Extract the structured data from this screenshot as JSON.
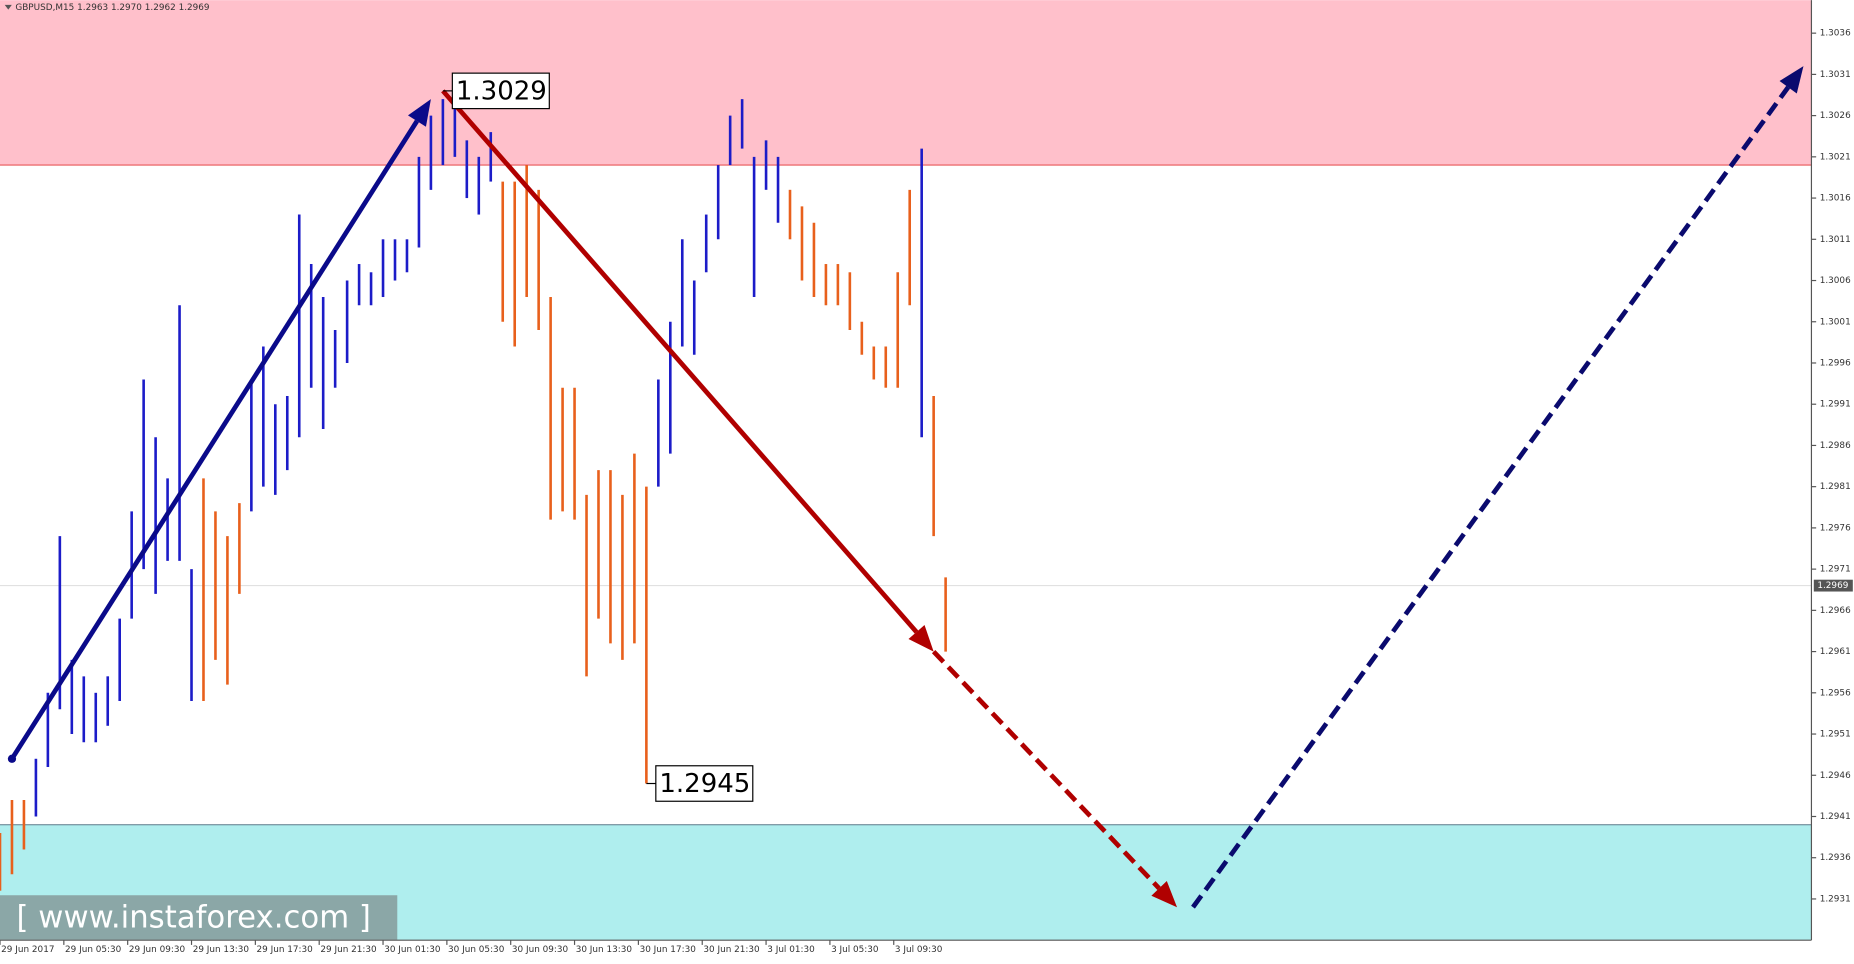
{
  "chart_data": {
    "type": "ohlc",
    "title": "GBPUSD,M15  1.2963 1.2970 1.2962 1.2969",
    "watermark": "[  www.instaforex.com ]",
    "x": [
      0,
      3,
      6,
      9,
      12,
      15,
      18,
      21,
      24,
      27,
      30,
      33,
      36,
      39,
      42,
      45,
      48,
      51,
      54,
      57,
      60,
      63,
      66,
      69,
      72,
      75,
      78,
      81,
      84,
      87,
      90,
      93,
      96,
      99,
      102,
      105,
      108,
      111,
      114,
      117,
      120,
      123,
      126,
      129,
      132,
      135,
      138,
      141,
      144,
      147,
      150,
      153,
      156,
      159,
      162,
      165,
      168,
      171,
      174,
      177,
      180,
      183,
      186,
      189,
      192,
      195,
      198,
      201,
      204,
      207,
      210,
      213,
      216,
      219,
      222,
      225,
      228,
      231,
      234,
      237
    ],
    "series": [
      {
        "color": "#1c1cc8",
        "lows": [
          null,
          null,
          null,
          1.2941,
          1.2947,
          1.2954,
          1.2951,
          1.295,
          1.295,
          1.2952,
          1.2955,
          1.2965,
          1.2971,
          1.2968,
          1.2972,
          1.2972,
          1.2955,
          null,
          null,
          null,
          null,
          1.2978,
          1.2981,
          1.298,
          1.2983,
          1.2987,
          1.2993,
          1.2988,
          1.2993,
          1.2996,
          1.3003,
          1.3003,
          1.3004,
          1.3006,
          1.3007,
          1.301,
          1.3017,
          1.302,
          1.3021,
          1.3016,
          1.3014,
          1.3018,
          null,
          null,
          null,
          null,
          null,
          null,
          null,
          null,
          null,
          null,
          null,
          null,
          null,
          1.2981,
          1.2985,
          1.2998,
          1.2997,
          1.3007,
          1.3011,
          1.302,
          1.3022,
          1.3004,
          1.3017,
          1.3013,
          null,
          null,
          null,
          null,
          null,
          null,
          null,
          null,
          null,
          null,
          null,
          1.2987,
          null,
          null
        ],
        "highs": [
          null,
          null,
          null,
          1.2948,
          1.2956,
          1.2975,
          1.296,
          1.2958,
          1.2956,
          1.2958,
          1.2965,
          1.2978,
          1.2994,
          1.2987,
          1.2982,
          1.3003,
          1.2971,
          null,
          null,
          null,
          null,
          1.2994,
          1.2998,
          1.2991,
          1.2992,
          1.3014,
          1.3008,
          1.3004,
          1.3,
          1.3006,
          1.3008,
          1.3007,
          1.3011,
          1.3011,
          1.3011,
          1.3021,
          1.3026,
          1.3028,
          1.3029,
          1.3023,
          1.3021,
          1.3024,
          null,
          null,
          null,
          null,
          null,
          null,
          null,
          null,
          null,
          null,
          null,
          null,
          null,
          1.2994,
          1.3001,
          1.3011,
          1.3006,
          1.3014,
          1.302,
          1.3026,
          1.3028,
          1.3021,
          1.3023,
          1.3021,
          null,
          null,
          null,
          null,
          null,
          null,
          null,
          null,
          null,
          null,
          null,
          1.3022,
          null,
          null
        ]
      },
      {
        "color": "#e8601c",
        "lows": [
          1.2932,
          1.2934,
          1.2937,
          null,
          null,
          null,
          null,
          null,
          null,
          null,
          null,
          null,
          null,
          null,
          null,
          null,
          null,
          1.2955,
          1.296,
          1.2957,
          1.2968,
          null,
          null,
          null,
          null,
          null,
          null,
          null,
          null,
          null,
          null,
          null,
          null,
          null,
          null,
          null,
          null,
          null,
          null,
          null,
          null,
          null,
          1.3001,
          1.2998,
          1.3004,
          1.3,
          1.2977,
          1.2978,
          1.2977,
          1.2958,
          1.2965,
          1.2962,
          1.296,
          1.2962,
          1.2945,
          null,
          null,
          null,
          null,
          null,
          null,
          null,
          null,
          null,
          null,
          null,
          1.3011,
          1.3006,
          1.3004,
          1.3003,
          1.3003,
          1.3,
          1.2997,
          1.2994,
          1.2993,
          1.2993,
          1.3003,
          null,
          1.2975,
          1.2961
        ],
        "highs": [
          1.2939,
          1.2943,
          1.2943,
          null,
          null,
          null,
          null,
          null,
          null,
          null,
          null,
          null,
          null,
          null,
          null,
          null,
          null,
          1.2982,
          1.2978,
          1.2975,
          1.2979,
          null,
          null,
          null,
          null,
          null,
          null,
          null,
          null,
          null,
          null,
          null,
          null,
          null,
          null,
          null,
          null,
          null,
          null,
          null,
          null,
          null,
          1.3018,
          1.3018,
          1.302,
          1.3017,
          1.3004,
          1.2993,
          1.2993,
          1.298,
          1.2983,
          1.2983,
          1.298,
          1.2985,
          1.2981,
          null,
          null,
          null,
          null,
          null,
          null,
          null,
          null,
          null,
          null,
          null,
          1.3017,
          1.3015,
          1.3013,
          1.3008,
          1.3008,
          1.3007,
          1.3001,
          1.2998,
          1.2998,
          1.3007,
          1.3017,
          null,
          1.2992,
          1.297
        ]
      }
    ],
    "xlim": [
      0,
      454
    ],
    "ylim": [
      1.2926,
      1.304
    ],
    "xticks": [
      {
        "value": 0,
        "label": "29 Jun 2017"
      },
      {
        "value": 16,
        "label": "29 Jun 05:30"
      },
      {
        "value": 32,
        "label": "29 Jun 09:30"
      },
      {
        "value": 48,
        "label": "29 Jun 13:30"
      },
      {
        "value": 64,
        "label": "29 Jun 17:30"
      },
      {
        "value": 80,
        "label": "29 Jun 21:30"
      },
      {
        "value": 96,
        "label": "30 Jun 01:30"
      },
      {
        "value": 112,
        "label": "30 Jun 05:30"
      },
      {
        "value": 128,
        "label": "30 Jun 09:30"
      },
      {
        "value": 144,
        "label": "30 Jun 13:30"
      },
      {
        "value": 160,
        "label": "30 Jun 17:30"
      },
      {
        "value": 176,
        "label": "30 Jun 21:30"
      },
      {
        "value": 192,
        "label": "3 Jul 01:30"
      },
      {
        "value": 208,
        "label": "3 Jul 05:30"
      },
      {
        "value": 224,
        "label": "3 Jul 09:30"
      }
    ],
    "yticks": [
      1.2931,
      1.2936,
      1.2941,
      1.2946,
      1.2951,
      1.2956,
      1.2961,
      1.2966,
      1.2971,
      1.2976,
      1.2981,
      1.2986,
      1.2991,
      1.2996,
      1.3001,
      1.3006,
      1.3011,
      1.3016,
      1.3021,
      1.3026,
      1.3031,
      1.3036
    ],
    "zones": [
      {
        "from": 1.302,
        "to": 1.304,
        "color": "#ffc0cb",
        "edge": "#e03030"
      },
      {
        "from": 1.2926,
        "to": 1.294,
        "color": "#afeeee",
        "edge": "#5a7a8a"
      }
    ],
    "last_price": 1.2969,
    "annotations": [
      {
        "x": 111,
        "value": 1.3029
      },
      {
        "x": 162,
        "value": 1.2945
      }
    ],
    "arrows": [
      {
        "x": [
          3,
          108
        ],
        "y": [
          1.2948,
          1.3028
        ],
        "color": "#0a0a8a",
        "dashed": false
      },
      {
        "x": [
          111,
          234
        ],
        "y": [
          1.3029,
          1.2961
        ],
        "color": "#b00000",
        "dashed": false
      },
      {
        "x": [
          234,
          295
        ],
        "y": [
          1.2961,
          1.293
        ],
        "color": "#b00000",
        "dashed": true
      },
      {
        "x": [
          299,
          452
        ],
        "y": [
          1.293,
          1.3032
        ],
        "color": "#0a0a6e",
        "dashed": true
      }
    ]
  }
}
